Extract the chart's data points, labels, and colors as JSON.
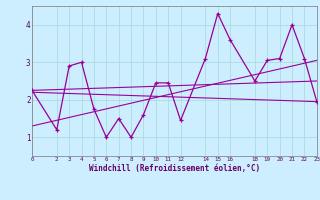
{
  "xlabel": "Windchill (Refroidissement éolien,°C)",
  "bg_color": "#cceeff",
  "line_color": "#990099",
  "grid_color": "#aadddd",
  "xlim": [
    0,
    23
  ],
  "ylim": [
    0.5,
    4.5
  ],
  "yticks": [
    1,
    2,
    3,
    4
  ],
  "xticks": [
    0,
    2,
    3,
    4,
    5,
    6,
    7,
    8,
    9,
    10,
    11,
    12,
    14,
    15,
    16,
    18,
    19,
    20,
    21,
    22,
    23
  ],
  "series1_x": [
    0,
    2,
    3,
    4,
    5,
    6,
    7,
    8,
    9,
    10,
    11,
    12,
    14,
    15,
    16,
    18,
    19,
    20,
    21,
    22,
    23
  ],
  "series1_y": [
    2.25,
    1.2,
    2.9,
    3.0,
    1.75,
    1.0,
    1.5,
    1.0,
    1.6,
    2.45,
    2.45,
    1.45,
    3.1,
    4.3,
    3.6,
    2.5,
    3.05,
    3.1,
    4.0,
    3.1,
    1.95
  ],
  "series2_x": [
    0,
    23
  ],
  "series2_y": [
    2.25,
    2.5
  ],
  "series3_x": [
    0,
    23
  ],
  "series3_y": [
    2.2,
    1.95
  ],
  "series4_x": [
    0,
    23
  ],
  "series4_y": [
    1.3,
    3.05
  ]
}
